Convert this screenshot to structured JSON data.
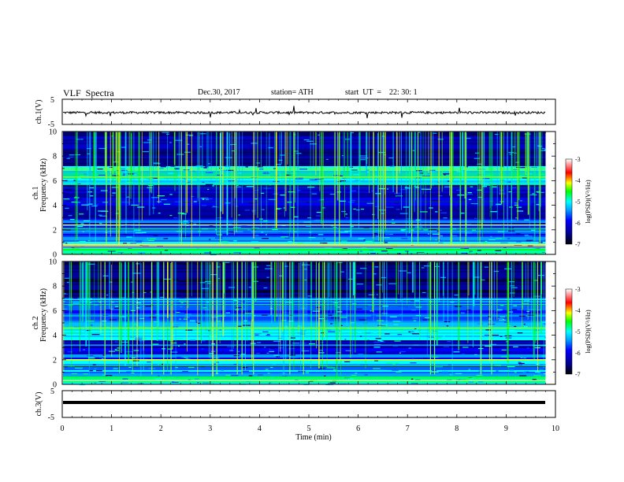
{
  "header": {
    "title": "VLF  Spectra",
    "date": "Dec.30, 2017",
    "station": "station= ATH",
    "start_ut": "start  UT  =    22: 30: 1"
  },
  "chart_data": [
    {
      "type": "line",
      "panel": "ch1-waveform",
      "ylabel": "ch.1(V)",
      "ylim": [
        -5,
        5
      ],
      "yticks": [
        "5",
        "-5"
      ],
      "xlim": [
        0,
        10
      ]
    },
    {
      "type": "heatmap",
      "panel": "ch1-spectrogram",
      "ylabel_line1": "ch.1",
      "ylabel_line2": "Frequency  (kHz)",
      "ylim": [
        0,
        10
      ],
      "yticks": [
        "0",
        "2",
        "4",
        "6",
        "8",
        "10"
      ],
      "xlim": [
        0,
        10
      ],
      "data_end_min": 9.8,
      "colorbar": {
        "label": "log(PSD)(V²/Hz)",
        "ticks": [
          "-3",
          "-4",
          "-5",
          "-6",
          "-7"
        ],
        "range": [
          -7,
          -3
        ]
      }
    },
    {
      "type": "heatmap",
      "panel": "ch2-spectrogram",
      "ylabel_line1": "ch.2",
      "ylabel_line2": "Frequency  (kHz)",
      "ylim": [
        0,
        10
      ],
      "yticks": [
        "0",
        "2",
        "4",
        "6",
        "8",
        "10"
      ],
      "xlim": [
        0,
        10
      ],
      "data_end_min": 9.8,
      "colorbar": {
        "label": "log(PSD)(V²/Hz)",
        "ticks": [
          "-3",
          "-4",
          "-5",
          "-6",
          "-7"
        ],
        "range": [
          -7,
          -3
        ]
      }
    },
    {
      "type": "line",
      "panel": "ch3-waveform",
      "ylabel": "ch.3(V)",
      "ylim": [
        -5,
        5
      ],
      "yticks": [
        "5",
        "-5"
      ],
      "xlim": [
        0,
        10
      ],
      "xlabel": "Time  (min)",
      "xticks": [
        "0",
        "1",
        "2",
        "3",
        "4",
        "5",
        "6",
        "7",
        "8",
        "9",
        "10"
      ]
    }
  ],
  "colors": {
    "colormap": [
      "#000000",
      "#00008b",
      "#0000ff",
      "#00a0ff",
      "#00ffff",
      "#00ff00",
      "#ffff00",
      "#ff0000",
      "#ffffff"
    ]
  }
}
